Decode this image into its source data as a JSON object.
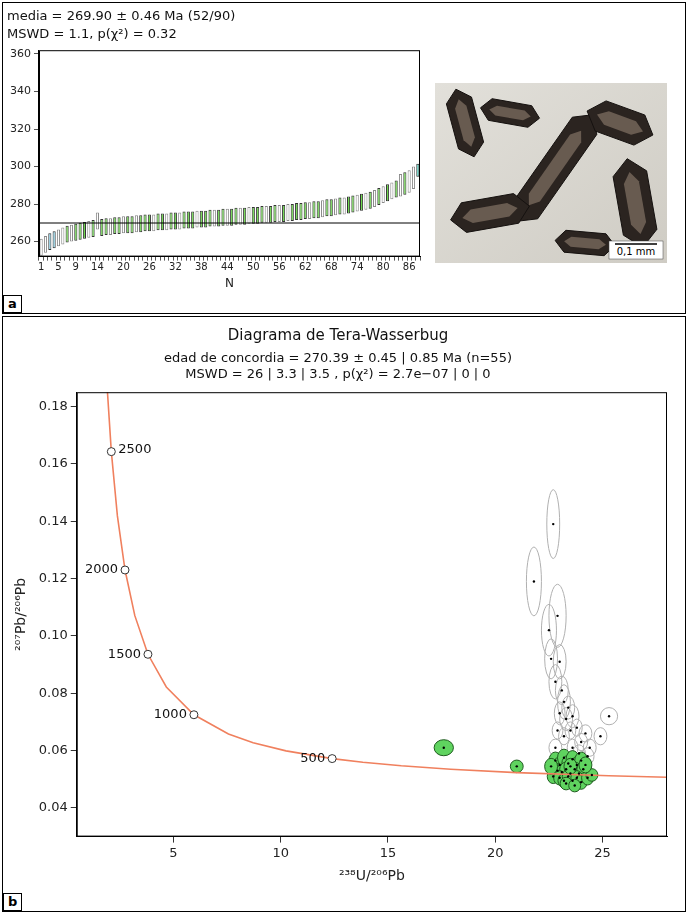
{
  "panel_labels": [
    "a",
    "b"
  ],
  "photo": {
    "scale_label": "0,1 mm"
  },
  "chart_data": [
    {
      "type": "bar",
      "title": "media = 269.90 ± 0.46 Ma (52/90)",
      "subtitle": "MSWD = 1.1, p(χ²) = 0.32",
      "x_label": "N",
      "categories": [
        "1",
        null,
        null,
        null,
        "5",
        null,
        null,
        null,
        "9",
        null,
        null,
        null,
        null,
        "14",
        null,
        null,
        null,
        null,
        null,
        "20",
        null,
        null,
        null,
        null,
        null,
        "26",
        null,
        null,
        null,
        null,
        null,
        "32",
        null,
        null,
        null,
        null,
        null,
        "38",
        null,
        null,
        null,
        null,
        null,
        "44",
        null,
        null,
        null,
        null,
        null,
        "50",
        null,
        null,
        null,
        null,
        null,
        "56",
        null,
        null,
        null,
        null,
        null,
        "62",
        null,
        null,
        null,
        null,
        null,
        "68",
        null,
        null,
        null,
        null,
        null,
        "74",
        null,
        null,
        null,
        null,
        null,
        "80",
        null,
        null,
        null,
        null,
        null,
        "86",
        null,
        null
      ],
      "values": [
        257,
        258.5,
        260,
        261,
        262,
        263,
        264,
        264.5,
        265,
        265.5,
        266,
        266.5,
        267,
        271,
        267.5,
        268,
        268,
        268.5,
        268.5,
        269,
        269,
        269,
        269.5,
        269.5,
        270,
        270,
        270,
        270.5,
        270.5,
        270.5,
        271,
        271,
        271,
        271.5,
        271.5,
        271.5,
        272,
        272,
        272,
        272.5,
        272.5,
        272.5,
        273,
        273,
        273,
        273.5,
        273.5,
        273.5,
        274,
        274,
        274,
        274.5,
        274.5,
        274.5,
        275,
        275,
        275,
        275.5,
        275.5,
        276,
        276,
        276.5,
        276.5,
        277,
        277,
        277.5,
        278,
        278,
        278.5,
        279,
        279,
        279.5,
        280,
        280.5,
        281,
        281.5,
        282,
        283,
        284,
        285,
        286,
        287,
        288,
        290,
        291,
        292,
        294,
        298
      ],
      "errors": [
        4.5,
        4.5,
        4.5,
        4.5,
        4.5,
        4.5,
        4.5,
        4.5,
        4.5,
        4.5,
        4.5,
        4.5,
        4.5,
        4.5,
        4.5,
        4.5,
        4.5,
        4.5,
        4.5,
        4.5,
        4.5,
        4.5,
        4.5,
        4.5,
        4.5,
        4.5,
        4.5,
        4.5,
        4.5,
        4.5,
        4.5,
        4.5,
        4.5,
        4.5,
        4.5,
        4.5,
        4.5,
        4.5,
        4.5,
        4.5,
        4.5,
        4.5,
        4.5,
        4.5,
        4.5,
        4.5,
        4.5,
        4.5,
        4.5,
        4.5,
        4.5,
        4.5,
        4.5,
        4.5,
        4.5,
        4.5,
        4.5,
        4.5,
        4.5,
        4.5,
        4.5,
        4.5,
        4.5,
        4.5,
        4.5,
        4.5,
        4.5,
        4.5,
        4.5,
        4.5,
        4.5,
        4.5,
        4.5,
        4.5,
        4.5,
        4.5,
        4.5,
        4.5,
        4.5,
        4.5,
        4.5,
        4.5,
        4.5,
        6,
        6,
        6,
        6,
        3.5
      ],
      "colors": [
        "#ffffff",
        "#ffffff",
        "#8fd3e8",
        "#8fd3e8",
        "#ffffff",
        "#ffffff",
        "#6fd84f",
        "#ffffff",
        "#6fd84f",
        "#6fd84f",
        "#6fd84f",
        "#ffffff",
        "#6fd84f",
        "#ffffff",
        "#6fd84f",
        "#6fd84f",
        "#ffffff",
        "#6fd84f",
        "#6fd84f",
        "#ffffff",
        "#6fd84f",
        "#6fd84f",
        "#ffffff",
        "#6fd84f",
        "#6fd84f",
        "#6fd84f",
        "#ffffff",
        "#6fd84f",
        "#6fd84f",
        "#ffffff",
        "#6fd84f",
        "#6fd84f",
        "#ffffff",
        "#6fd84f",
        "#6fd84f",
        "#6fd84f",
        "#ffffff",
        "#6fd84f",
        "#6fd84f",
        "#6fd84f",
        "#ffffff",
        "#6fd84f",
        "#6fd84f",
        "#ffffff",
        "#6fd84f",
        "#6fd84f",
        "#ffffff",
        "#6fd84f",
        "#ffffff",
        "#6fd84f",
        "#6fd84f",
        "#6fd84f",
        "#ffffff",
        "#6fd84f",
        "#6fd84f",
        "#ffffff",
        "#6fd84f",
        "#ffffff",
        "#6fd84f",
        "#6fd84f",
        "#6fd84f",
        "#6fd84f",
        "#ffffff",
        "#6fd84f",
        "#6fd84f",
        "#ffffff",
        "#6fd84f",
        "#6fd84f",
        "#ffffff",
        "#6fd84f",
        "#ffffff",
        "#6fd84f",
        "#6fd84f",
        "#ffffff",
        "#6fd84f",
        "#ffffff",
        "#6fd84f",
        "#ffffff",
        "#6fd84f",
        "#ffffff",
        "#6fd84f",
        "#ffffff",
        "#6fd84f",
        "#ffffff",
        "#6fd84f",
        "#ffffff",
        "#ffffff",
        "#5fd8c8"
      ],
      "mean": 269.9,
      "ylim": [
        252,
        362
      ],
      "yticks": [
        260,
        280,
        300,
        320,
        340,
        360
      ],
      "grid": false
    },
    {
      "type": "scatter",
      "title": "Diagrama de Tera-Wasserbug",
      "subtitle": [
        "edad de concordia = 270.39 ± 0.45 | 0.85 Ma (n=55)",
        "MSWD = 26 | 3.3 | 3.5 , p(χ²) = 2.7e−07 | 0 | 0"
      ],
      "x_label": "²³⁸U/²⁰⁶Pb",
      "y_label": "²⁰⁷Pb/²⁰⁶Pb",
      "xlim": [
        0.5,
        28
      ],
      "ylim": [
        0.03,
        0.185
      ],
      "xticks": [
        5,
        10,
        15,
        20,
        25
      ],
      "yticks": [
        0.04,
        0.06,
        0.08,
        {
          "value": 0.1,
          "label": "0.10"
        },
        0.12,
        0.14,
        0.16,
        0.18
      ],
      "grid": false,
      "concordia": {
        "color": "#f0805e",
        "x": [
          28.8,
          25.29,
          20.99,
          17.92,
          15.62,
          13.83,
          12.4,
          10.25,
          8.718,
          7.568,
          5.959,
          4.673,
          3.817,
          3.206,
          2.749,
          2.394,
          2.111,
          1.88
        ],
        "y": [
          0.05054,
          0.0512,
          0.05233,
          0.0535,
          0.0547,
          0.05594,
          0.05721,
          0.0599,
          0.06276,
          0.0658,
          0.0725,
          0.08219,
          0.09359,
          0.10706,
          0.12299,
          0.14186,
          0.16427,
          0.19094
        ]
      },
      "concordia_markers": {
        "ages": [
          500,
          1000,
          1500,
          2000,
          2500
        ],
        "x": [
          12.4,
          5.959,
          3.817,
          2.749,
          2.111
        ],
        "y": [
          0.05721,
          0.0725,
          0.09359,
          0.12299,
          0.16427
        ]
      },
      "ellipses": [
        {
          "marker": "open_ellipse",
          "color": "#b0b0b0",
          "x": [
            22.7,
            21.8,
            22.5,
            22.9,
            22.6,
            23.0,
            22.8,
            23.1,
            23.2,
            23.4,
            23.0,
            23.3,
            23.6,
            22.9,
            23.5,
            23.8,
            24.2,
            23.2,
            24.0,
            24.9,
            25.3,
            23.6,
            24.4,
            22.8,
            23.9,
            24.3
          ],
          "y": [
            0.139,
            0.119,
            0.102,
            0.107,
            0.092,
            0.091,
            0.084,
            0.081,
            0.077,
            0.075,
            0.073,
            0.071,
            0.072,
            0.067,
            0.067,
            0.068,
            0.066,
            0.065,
            0.063,
            0.065,
            0.072,
            0.061,
            0.061,
            0.061,
            0.059,
            0.058
          ],
          "x_error": [
            0.3,
            0.35,
            0.35,
            0.4,
            0.3,
            0.3,
            0.3,
            0.3,
            0.3,
            0.3,
            0.25,
            0.3,
            0.3,
            0.25,
            0.25,
            0.25,
            0.3,
            0.25,
            0.3,
            0.3,
            0.4,
            0.25,
            0.3,
            0.3,
            0.3,
            0.3
          ],
          "y_error": [
            0.012,
            0.012,
            0.009,
            0.011,
            0.007,
            0.006,
            0.006,
            0.005,
            0.006,
            0.004,
            0.004,
            0.004,
            0.004,
            0.003,
            0.003,
            0.003,
            0.003,
            0.003,
            0.003,
            0.003,
            0.003,
            0.003,
            0.003,
            0.003,
            0.003,
            0.003
          ]
        },
        {
          "marker": "filled_ellipse",
          "color": "#5fd35f",
          "x": [
            17.6,
            21.0,
            22.8,
            23.0,
            23.2,
            23.4,
            23.6,
            23.8,
            24.0,
            22.9,
            23.1,
            23.3,
            23.5,
            23.7,
            23.9,
            24.1,
            22.7,
            23.0,
            23.2,
            23.4,
            23.6,
            23.8,
            24.0,
            24.3,
            24.5,
            23.3,
            23.7,
            24.2,
            22.6,
            23.5
          ],
          "y": [
            0.061,
            0.0545,
            0.0565,
            0.055,
            0.0575,
            0.0555,
            0.057,
            0.055,
            0.0565,
            0.053,
            0.0525,
            0.0535,
            0.052,
            0.0535,
            0.052,
            0.0535,
            0.051,
            0.0505,
            0.0495,
            0.051,
            0.0495,
            0.0505,
            0.049,
            0.0505,
            0.0515,
            0.0485,
            0.0478,
            0.055,
            0.0545,
            0.0545
          ],
          "x_error": [
            0.45,
            0.3,
            0.3,
            0.3,
            0.3,
            0.3,
            0.3,
            0.3,
            0.3,
            0.3,
            0.3,
            0.3,
            0.3,
            0.3,
            0.3,
            0.3,
            0.28,
            0.28,
            0.28,
            0.28,
            0.28,
            0.28,
            0.28,
            0.28,
            0.28,
            0.28,
            0.28,
            0.3,
            0.3,
            0.3
          ],
          "y_error": [
            0.0028,
            0.0022,
            0.003,
            0.0028,
            0.003,
            0.0028,
            0.003,
            0.0028,
            0.003,
            0.0025,
            0.0025,
            0.0025,
            0.0025,
            0.0025,
            0.0025,
            0.0025,
            0.0025,
            0.0025,
            0.0025,
            0.0025,
            0.0025,
            0.0025,
            0.0025,
            0.0025,
            0.0022,
            0.0022,
            0.0022,
            0.0028,
            0.0028,
            0.0028
          ]
        }
      ]
    }
  ]
}
